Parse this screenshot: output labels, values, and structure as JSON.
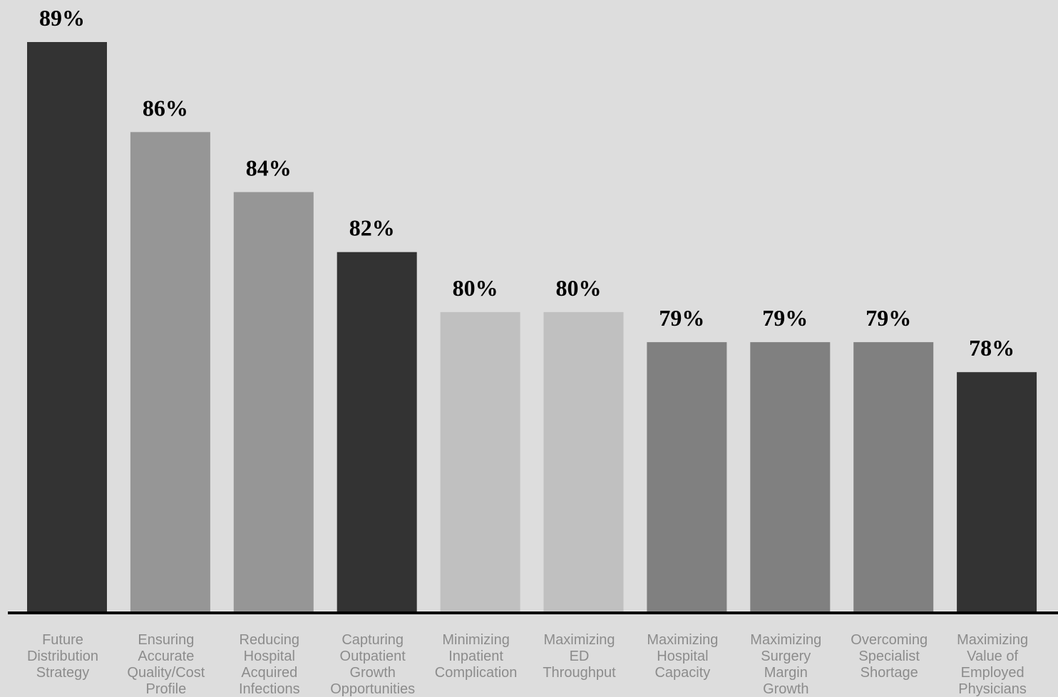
{
  "chart_data": {
    "type": "bar",
    "categories": [
      "Future Distribution Strategy",
      "Ensuring Accurate Quality/Cost Profile",
      "Reducing Hospital Acquired Infections",
      "Capturing Outpatient Growth Opportunities",
      "Minimizing Inpatient Complication",
      "Maximizing ED Throughput",
      "Maximizing Hospital Capacity",
      "Maximizing Surgery Margin Growth",
      "Overcoming Specialist Shortage",
      "Maximizing Value of Employed Physicians"
    ],
    "category_lines": [
      [
        "Future",
        "Distribution",
        "Strategy"
      ],
      [
        "Ensuring",
        "Accurate",
        "Quality/Cost",
        "Profile"
      ],
      [
        "Reducing",
        "Hospital",
        "Acquired",
        "Infections"
      ],
      [
        "Capturing",
        "Outpatient",
        "Growth",
        "Opportunities"
      ],
      [
        "Minimizing",
        "Inpatient",
        "Complication"
      ],
      [
        "Maximizing",
        "ED",
        "Throughput"
      ],
      [
        "Maximizing",
        "Hospital",
        "Capacity"
      ],
      [
        "Maximizing",
        "Surgery",
        "Margin",
        "Growth"
      ],
      [
        "Overcoming",
        "Specialist",
        "Shortage"
      ],
      [
        "Maximizing",
        "Value of",
        "Employed",
        "Physicians"
      ]
    ],
    "values": [
      89,
      86,
      84,
      82,
      80,
      80,
      79,
      79,
      79,
      78
    ],
    "value_labels": [
      "89%",
      "86%",
      "84%",
      "82%",
      "80%",
      "80%",
      "79%",
      "79%",
      "79%",
      "78%"
    ],
    "bar_colors": [
      "#333333",
      "#969696",
      "#969696",
      "#333333",
      "#c0c0c0",
      "#c0c0c0",
      "#808080",
      "#808080",
      "#808080",
      "#333333"
    ],
    "label_color": "#8c8c8c",
    "background": "#dddddd",
    "axis_color": "#000000",
    "title": "",
    "xlabel": "",
    "ylabel": "",
    "ylim": [
      70,
      89
    ],
    "grid": false,
    "legend": "none"
  }
}
